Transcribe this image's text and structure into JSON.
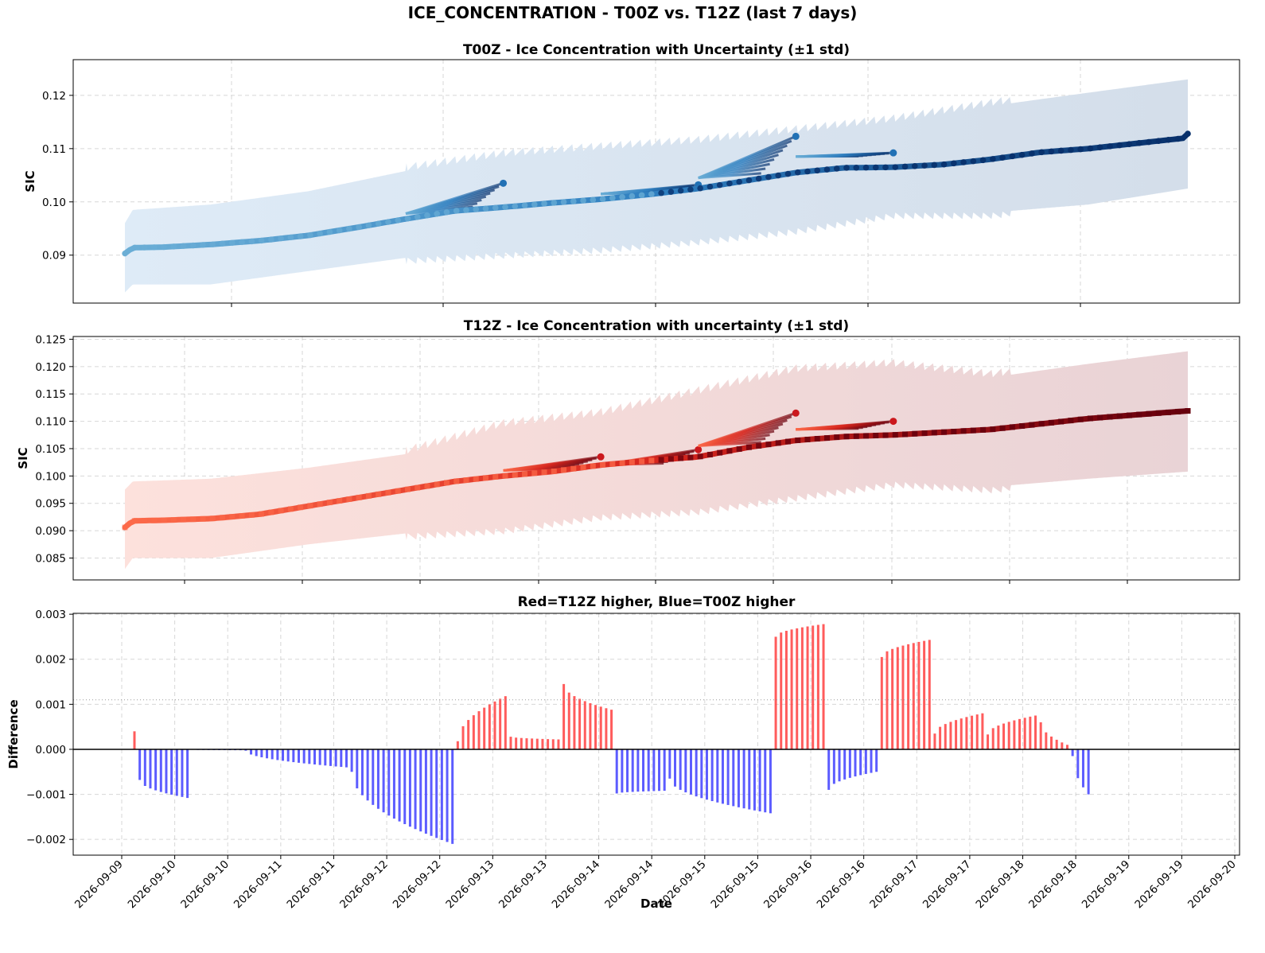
{
  "figure_title": "ICE_CONCENTRATION - T00Z vs. T12Z (last 7 days)",
  "colors": {
    "t00z_light": "#6baed6",
    "t00z_dark": "#08306b",
    "t12z_light": "#fc6a4a",
    "t12z_dark": "#67000d",
    "diff_positive": "#ff4040",
    "diff_negative": "#4040ff",
    "band_t00z": "#c6dbef",
    "band_t12z": "#f4c6c0"
  },
  "chart_data": [
    {
      "id": "t00z",
      "type": "line",
      "title": "T00Z - Ice Concentration with Uncertainty (±1 std)",
      "xlabel": "",
      "ylabel": "SIC",
      "x_start": "2026-09-09 00:00",
      "x_end": "2026-09-20 00:00",
      "xlim_days": [
        9.0,
        20.0
      ],
      "ylim": [
        0.081,
        0.1267
      ],
      "yticks": [
        "0.09",
        "0.10",
        "0.11",
        "0.12"
      ],
      "ytick_values": [
        0.09,
        0.1,
        0.11,
        0.12
      ],
      "grid": true,
      "series": [
        {
          "points": [
            [
              9.12,
              0.0903
            ],
            [
              9.2,
              0.0914
            ],
            [
              9.5,
              0.0915
            ],
            [
              10.0,
              0.092
            ],
            [
              10.5,
              0.0927
            ],
            [
              11.0,
              0.0937
            ],
            [
              11.5,
              0.0952
            ],
            [
              12.0,
              0.0968
            ],
            [
              12.5,
              0.0983
            ],
            [
              13.0,
              0.099
            ],
            [
              13.5,
              0.0998
            ],
            [
              14.0,
              0.1005
            ],
            [
              14.5,
              0.1014
            ],
            [
              15.0,
              0.1025
            ],
            [
              15.5,
              0.104
            ],
            [
              16.0,
              0.1055
            ],
            [
              16.5,
              0.1064
            ],
            [
              17.0,
              0.1065
            ],
            [
              17.5,
              0.107
            ],
            [
              18.0,
              0.108
            ],
            [
              18.5,
              0.1093
            ],
            [
              19.0,
              0.11
            ],
            [
              19.5,
              0.111
            ],
            [
              20.0,
              0.112
            ],
            [
              20.02,
              0.1128
            ]
          ],
          "upper": [
            [
              9.12,
              0.096
            ],
            [
              9.2,
              0.0985
            ],
            [
              10.0,
              0.0995
            ],
            [
              11.0,
              0.102
            ],
            [
              12.0,
              0.1058
            ],
            [
              13.0,
              0.1085
            ],
            [
              14.0,
              0.1098
            ],
            [
              15.0,
              0.111
            ],
            [
              16.0,
              0.113
            ],
            [
              17.0,
              0.115
            ],
            [
              18.0,
              0.118
            ],
            [
              19.0,
              0.1205
            ],
            [
              20.02,
              0.123
            ]
          ],
          "lower": [
            [
              9.12,
              0.083
            ],
            [
              9.2,
              0.0845
            ],
            [
              10.0,
              0.0845
            ],
            [
              11.0,
              0.087
            ],
            [
              12.0,
              0.0895
            ],
            [
              13.0,
              0.0905
            ],
            [
              14.0,
              0.0915
            ],
            [
              15.0,
              0.093
            ],
            [
              16.0,
              0.095
            ],
            [
              17.0,
              0.098
            ],
            [
              18.0,
              0.098
            ],
            [
              19.0,
              0.0995
            ],
            [
              20.02,
              0.1025
            ]
          ],
          "overlays": [
            {
              "from": 12.0,
              "to": 13.0,
              "start": 0.0978,
              "end": 0.1035
            },
            {
              "from": 14.0,
              "to": 15.0,
              "start": 0.1015,
              "end": 0.1032
            },
            {
              "from": 15.0,
              "to": 16.0,
              "start": 0.1045,
              "end": 0.1123
            },
            {
              "from": 16.0,
              "to": 17.0,
              "start": 0.1085,
              "end": 0.1092
            }
          ]
        }
      ]
    },
    {
      "id": "t12z",
      "type": "line",
      "title": "T12Z - Ice Concentration with uncertainty (±1 std)",
      "xlabel": "",
      "ylabel": "SIC",
      "x_start": "2026-09-09 00:00",
      "x_end": "2026-09-20 00:00",
      "xlim_days": [
        9.0,
        20.0
      ],
      "ylim": [
        0.081,
        0.1255
      ],
      "yticks": [
        "0.085",
        "0.090",
        "0.095",
        "0.100",
        "0.105",
        "0.110",
        "0.115",
        "0.120",
        "0.125"
      ],
      "ytick_values": [
        0.085,
        0.09,
        0.095,
        0.1,
        0.105,
        0.11,
        0.115,
        0.12,
        0.125
      ],
      "grid": true,
      "series": [
        {
          "points": [
            [
              9.12,
              0.0906
            ],
            [
              9.2,
              0.0918
            ],
            [
              9.5,
              0.0919
            ],
            [
              10.0,
              0.0922
            ],
            [
              10.5,
              0.093
            ],
            [
              11.0,
              0.0945
            ],
            [
              11.5,
              0.096
            ],
            [
              12.0,
              0.0975
            ],
            [
              12.5,
              0.099
            ],
            [
              13.0,
              0.1
            ],
            [
              13.5,
              0.1008
            ],
            [
              14.0,
              0.102
            ],
            [
              14.5,
              0.1028
            ],
            [
              15.0,
              0.1035
            ],
            [
              15.5,
              0.1052
            ],
            [
              16.0,
              0.1065
            ],
            [
              16.5,
              0.1072
            ],
            [
              17.0,
              0.1075
            ],
            [
              17.5,
              0.108
            ],
            [
              18.0,
              0.1085
            ],
            [
              18.5,
              0.1095
            ],
            [
              19.0,
              0.1105
            ],
            [
              19.5,
              0.1112
            ],
            [
              20.02,
              0.1119
            ]
          ],
          "upper": [
            [
              9.12,
              0.0975
            ],
            [
              9.2,
              0.099
            ],
            [
              10.0,
              0.0995
            ],
            [
              11.0,
              0.1015
            ],
            [
              12.0,
              0.104
            ],
            [
              13.0,
              0.109
            ],
            [
              14.0,
              0.111
            ],
            [
              15.0,
              0.115
            ],
            [
              16.0,
              0.119
            ],
            [
              17.0,
              0.12
            ],
            [
              18.0,
              0.118
            ],
            [
              19.0,
              0.1205
            ],
            [
              20.02,
              0.1228
            ]
          ],
          "lower": [
            [
              9.12,
              0.083
            ],
            [
              9.2,
              0.085
            ],
            [
              10.0,
              0.085
            ],
            [
              11.0,
              0.0875
            ],
            [
              12.0,
              0.0895
            ],
            [
              13.0,
              0.0905
            ],
            [
              14.0,
              0.093
            ],
            [
              15.0,
              0.094
            ],
            [
              16.0,
              0.0965
            ],
            [
              17.0,
              0.099
            ],
            [
              18.0,
              0.098
            ],
            [
              19.0,
              0.0995
            ],
            [
              20.02,
              0.1008
            ]
          ],
          "overlays": [
            {
              "from": 13.0,
              "to": 14.0,
              "start": 0.101,
              "end": 0.1035
            },
            {
              "from": 14.0,
              "to": 15.0,
              "start": 0.102,
              "end": 0.1048
            },
            {
              "from": 15.0,
              "to": 16.0,
              "start": 0.1055,
              "end": 0.1115
            },
            {
              "from": 16.0,
              "to": 17.0,
              "start": 0.1085,
              "end": 0.11
            }
          ]
        }
      ]
    },
    {
      "id": "diff",
      "type": "bar",
      "title": "Red=T12Z higher, Blue=T00Z higher",
      "xlabel": "Date",
      "ylabel": "Difference",
      "x_start": "2026-09-09 00:00",
      "x_end": "2026-09-20 00:00",
      "xlim_days": [
        9.0,
        20.0
      ],
      "ylim": [
        -0.00235,
        0.00302
      ],
      "yticks": [
        "−0.002",
        "−0.001",
        "0.000",
        "0.001",
        "0.002",
        "0.003"
      ],
      "ytick_values": [
        -0.002,
        -0.001,
        0.0,
        0.001,
        0.002,
        0.003
      ],
      "xticks": [
        "2026-09-09",
        "2026-09-10",
        "2026-09-10",
        "2026-09-11",
        "2026-09-11",
        "2026-09-12",
        "2026-09-12",
        "2026-09-13",
        "2026-09-13",
        "2026-09-14",
        "2026-09-14",
        "2026-09-15",
        "2026-09-15",
        "2026-09-16",
        "2026-09-16",
        "2026-09-17",
        "2026-09-17",
        "2026-09-18",
        "2026-09-18",
        "2026-09-19",
        "2026-09-19",
        "2026-09-20"
      ],
      "grid": true,
      "segments": [
        {
          "from": 9.12,
          "to": 9.12,
          "start": 0.0004,
          "end": 0.0004
        },
        {
          "from": 9.17,
          "to": 9.62,
          "start": -0.00068,
          "end": -0.00108
        },
        {
          "from": 9.67,
          "to": 10.12,
          "start": -1e-05,
          "end": -2e-05
        },
        {
          "from": 10.17,
          "to": 11.12,
          "start": -3e-05,
          "end": -0.0004
        },
        {
          "from": 11.17,
          "to": 12.12,
          "start": -0.0005,
          "end": -0.0021
        },
        {
          "from": 12.17,
          "to": 12.62,
          "start": 0.00018,
          "end": 0.00118
        },
        {
          "from": 12.67,
          "to": 13.12,
          "start": 0.00028,
          "end": 0.00022
        },
        {
          "from": 13.17,
          "to": 13.62,
          "start": 0.00145,
          "end": 0.00088
        },
        {
          "from": 13.67,
          "to": 14.12,
          "start": -0.00098,
          "end": -0.00092
        },
        {
          "from": 14.17,
          "to": 15.12,
          "start": -0.00065,
          "end": -0.00142
        },
        {
          "from": 15.17,
          "to": 15.62,
          "start": 0.0025,
          "end": 0.00278
        },
        {
          "from": 15.67,
          "to": 16.12,
          "start": -0.0009,
          "end": -0.0005
        },
        {
          "from": 16.17,
          "to": 16.62,
          "start": 0.00205,
          "end": 0.00243
        },
        {
          "from": 16.67,
          "to": 17.12,
          "start": 0.00035,
          "end": 0.0008
        },
        {
          "from": 17.17,
          "to": 17.62,
          "start": 0.00033,
          "end": 0.00075
        },
        {
          "from": 17.67,
          "to": 17.92,
          "start": 0.0006,
          "end": 0.0001
        },
        {
          "from": 17.97,
          "to": 18.12,
          "start": -0.00015,
          "end": -0.001
        }
      ]
    }
  ]
}
